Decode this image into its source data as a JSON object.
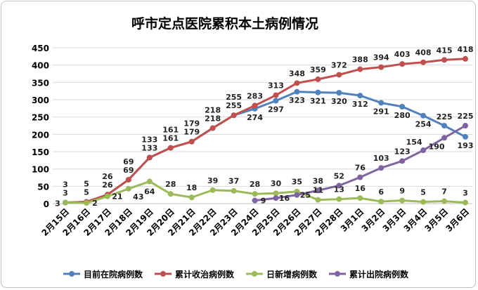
{
  "chart_data": {
    "type": "line",
    "title": "呼市定点医院累积本土病例情况",
    "xlabel": "",
    "ylabel": "",
    "ylim": [
      0,
      450
    ],
    "yticks": [
      0,
      50,
      100,
      150,
      200,
      250,
      300,
      350,
      400,
      450
    ],
    "grid": true,
    "legend_position": "bottom",
    "categories": [
      "2月15日",
      "2月16日",
      "2月17日",
      "2月18日",
      "2月19日",
      "2月20日",
      "2月21日",
      "2月22日",
      "2月23日",
      "2月24日",
      "2月25日",
      "2月26日",
      "2月27日",
      "2月28日",
      "3月1日",
      "3月2日",
      "3月3日",
      "3月4日",
      "3月5日",
      "3月6日"
    ],
    "series": [
      {
        "name": "目前在院病例数",
        "color": "#4f81bd",
        "values": [
          3,
          5,
          26,
          69,
          133,
          161,
          179,
          218,
          255,
          274,
          297,
          323,
          321,
          320,
          312,
          291,
          280,
          254,
          225,
          193
        ]
      },
      {
        "name": "累计收治病例数",
        "color": "#c0504d",
        "values": [
          3,
          5,
          26,
          69,
          133,
          161,
          179,
          218,
          255,
          283,
          313,
          348,
          359,
          372,
          388,
          394,
          403,
          408,
          415,
          418
        ]
      },
      {
        "name": "日新增病例数",
        "color": "#9bbb59",
        "values": [
          3,
          2,
          21,
          43,
          64,
          28,
          18,
          39,
          37,
          28,
          30,
          35,
          11,
          13,
          16,
          6,
          9,
          5,
          7,
          3
        ]
      },
      {
        "name": "累计出院病例数",
        "color": "#8064a2",
        "values": [
          null,
          null,
          null,
          null,
          null,
          null,
          null,
          null,
          null,
          9,
          16,
          25,
          38,
          52,
          76,
          103,
          123,
          154,
          190,
          225
        ]
      }
    ]
  }
}
